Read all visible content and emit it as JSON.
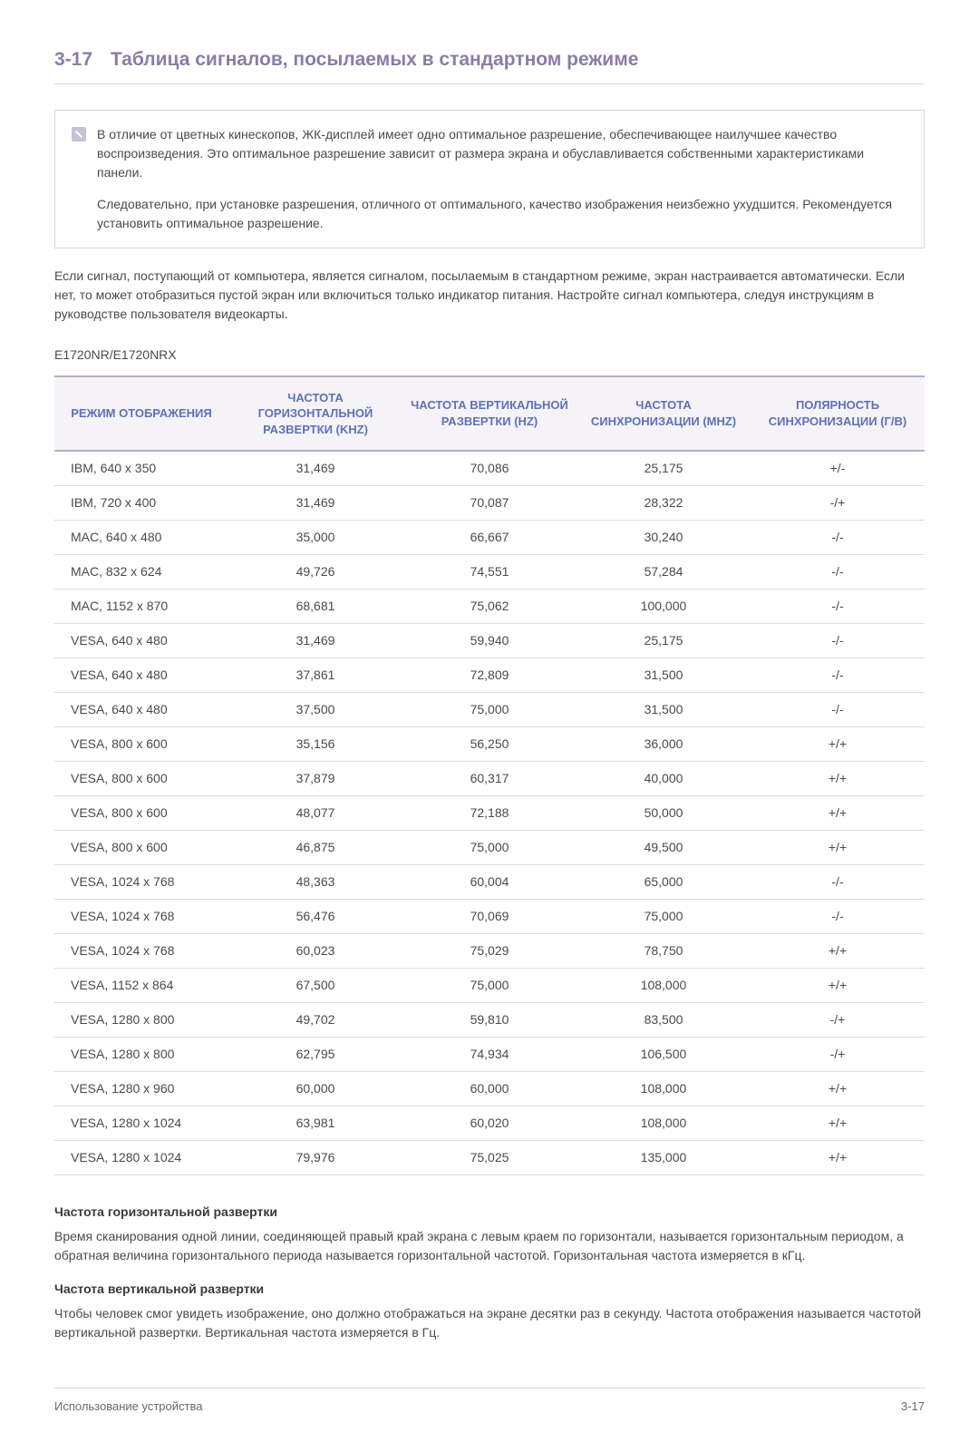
{
  "colors": {
    "heading": "#8b7ca8",
    "th_text": "#5d71b8",
    "border_light": "#d8d8d8",
    "border_table": "#b8aecb",
    "row_border": "#dcdcdc",
    "th_bg": "#f5f3f8",
    "body_text": "#4a4a4a"
  },
  "section": {
    "number": "3-17",
    "title": "Таблица сигналов, посылаемых в стандартном режиме"
  },
  "note": {
    "p1": "В отличие от цветных кинескопов, ЖК-дисплей имеет одно оптимальное разрешение, обеспечивающее наилучшее качество воспроизведения. Это оптимальное разрешение зависит от размера экрана и обуславливается собственными характеристиками панели.",
    "p2": "Следовательно, при установке разрешения, отличного от оптимального, качество изображения неизбежно ухудшится. Рекомендуется установить оптимальное разрешение."
  },
  "intro": "Если сигнал, поступающий от компьютера, является сигналом, посылаемым в стандартном режиме, экран настраивается автоматически. Если нет, то может отобразиться пустой экран или включиться только индикатор питания. Настройте сигнал компьютера, следуя инструкциям в руководстве пользователя видеокарты.",
  "model": "E1720NR/E1720NRX",
  "table": {
    "type": "table",
    "columns": [
      "РЕЖИМ ОТОБРАЖЕНИЯ",
      "ЧАСТОТА ГОРИЗОНТАЛЬНОЙ РАЗВЕРТКИ (KHZ)",
      "ЧАСТОТА ВЕРТИКАЛЬНОЙ РАЗВЕРТКИ (HZ)",
      "ЧАСТОТА СИНХРОНИЗАЦИИ (MHZ)",
      "ПОЛЯРНОСТЬ СИНХРОНИЗАЦИИ (Г/В)"
    ],
    "col_widths_pct": [
      20,
      20,
      20,
      20,
      20
    ],
    "rows": [
      [
        "IBM, 640 x 350",
        "31,469",
        "70,086",
        "25,175",
        "+/-"
      ],
      [
        "IBM, 720 x 400",
        "31,469",
        "70,087",
        "28,322",
        "-/+"
      ],
      [
        "MAC, 640 x 480",
        "35,000",
        "66,667",
        "30,240",
        "-/-"
      ],
      [
        "MAC, 832 x 624",
        "49,726",
        "74,551",
        "57,284",
        "-/-"
      ],
      [
        "MAC, 1152 x 870",
        "68,681",
        "75,062",
        "100,000",
        "-/-"
      ],
      [
        "VESA, 640 x 480",
        "31,469",
        "59,940",
        "25,175",
        "-/-"
      ],
      [
        "VESA, 640 x 480",
        "37,861",
        "72,809",
        "31,500",
        "-/-"
      ],
      [
        "VESA, 640 x 480",
        "37,500",
        "75,000",
        "31,500",
        "-/-"
      ],
      [
        "VESA, 800 x 600",
        "35,156",
        "56,250",
        "36,000",
        "+/+"
      ],
      [
        "VESA, 800 x 600",
        "37,879",
        "60,317",
        "40,000",
        "+/+"
      ],
      [
        "VESA, 800 x 600",
        "48,077",
        "72,188",
        "50,000",
        "+/+"
      ],
      [
        "VESA, 800 x 600",
        "46,875",
        "75,000",
        "49,500",
        "+/+"
      ],
      [
        "VESA, 1024 x 768",
        "48,363",
        "60,004",
        "65,000",
        "-/-"
      ],
      [
        "VESA, 1024 x 768",
        "56,476",
        "70,069",
        "75,000",
        "-/-"
      ],
      [
        "VESA, 1024 x 768",
        "60,023",
        "75,029",
        "78,750",
        "+/+"
      ],
      [
        "VESA, 1152 x 864",
        "67,500",
        "75,000",
        "108,000",
        "+/+"
      ],
      [
        "VESA, 1280 x 800",
        "49,702",
        "59,810",
        "83,500",
        "-/+"
      ],
      [
        "VESA, 1280 x 800",
        "62,795",
        "74,934",
        "106,500",
        "-/+"
      ],
      [
        "VESA, 1280 x 960",
        "60,000",
        "60,000",
        "108,000",
        "+/+"
      ],
      [
        "VESA, 1280 x 1024",
        "63,981",
        "60,020",
        "108,000",
        "+/+"
      ],
      [
        "VESA, 1280 x 1024",
        "79,976",
        "75,025",
        "135,000",
        "+/+"
      ]
    ]
  },
  "defs": {
    "h1": "Частота горизонтальной развертки",
    "p1": "Время сканирования одной линии, соединяющей правый край экрана с левым краем по горизонтали, называется горизонтальным периодом, а обратная величина горизонтального периода называется горизонтальной частотой. Горизонтальная частота измеряется в кГц.",
    "h2": "Частота вертикальной развертки",
    "p2": "Чтобы человек смог увидеть изображение, оно должно отображаться на экране десятки раз в секунду. Частота отображения называется частотой вертикальной развертки. Вертикальная частота измеряется в Гц."
  },
  "footer": {
    "left": "Использование устройства",
    "right": "3-17"
  }
}
